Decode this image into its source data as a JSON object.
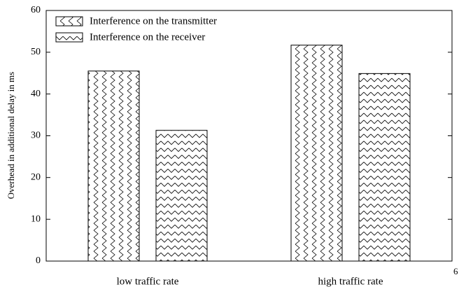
{
  "chart_data": {
    "type": "bar",
    "ylabel": "Overhead in additional delay in ms",
    "categories": [
      "low traffic rate",
      "high traffic rate"
    ],
    "series": [
      {
        "name": "Interference on the transmitter",
        "color": "#000000",
        "values": [
          45.5,
          51.7
        ]
      },
      {
        "name": "Interference on the receiver",
        "color": "#000000",
        "values": [
          31.3,
          44.9
        ]
      }
    ],
    "ylim": [
      0,
      60
    ],
    "yticks": [
      0,
      10,
      20,
      30,
      40,
      50,
      60
    ],
    "legend": "upper left",
    "annotation": "6"
  }
}
